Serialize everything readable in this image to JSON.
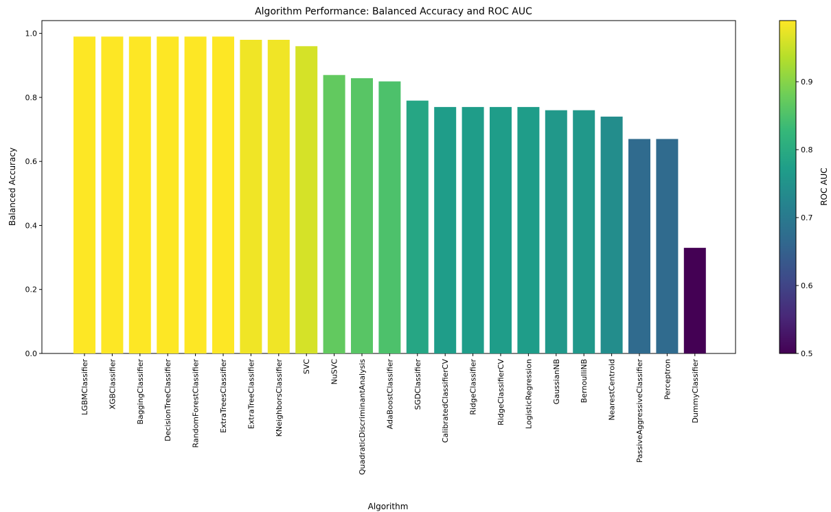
{
  "chart_data": {
    "type": "bar",
    "title": "Algorithm Performance: Balanced Accuracy and ROC AUC",
    "xlabel": "Algorithm",
    "ylabel": "Balanced Accuracy",
    "ylim": [
      0,
      1.04
    ],
    "yticks": [
      0.0,
      0.2,
      0.4,
      0.6,
      0.8,
      1.0
    ],
    "ytick_labels": [
      "0.0",
      "0.2",
      "0.4",
      "0.6",
      "0.8",
      "1.0"
    ],
    "categories": [
      "LGBMClassifier",
      "XGBClassifier",
      "BaggingClassifier",
      "DecisionTreeClassifier",
      "RandomForestClassifier",
      "ExtraTreesClassifier",
      "ExtraTreeClassifier",
      "KNeighborsClassifier",
      "SVC",
      "NuSVC",
      "QuadraticDiscriminantAnalysis",
      "AdaBoostClassifier",
      "SGDClassifier",
      "CalibratedClassifierCV",
      "RidgeClassifier",
      "RidgeClassifierCV",
      "LogisticRegression",
      "GaussianNB",
      "BernoulliNB",
      "NearestCentroid",
      "PassiveAggressiveClassifier",
      "Perceptron",
      "DummyClassifier"
    ],
    "values": [
      0.99,
      0.99,
      0.99,
      0.99,
      0.99,
      0.99,
      0.98,
      0.98,
      0.96,
      0.87,
      0.86,
      0.85,
      0.79,
      0.77,
      0.77,
      0.77,
      0.77,
      0.76,
      0.76,
      0.74,
      0.67,
      0.67,
      0.33
    ],
    "color_values": [
      0.99,
      0.99,
      0.99,
      0.99,
      0.99,
      0.99,
      0.98,
      0.98,
      0.96,
      0.87,
      0.86,
      0.85,
      0.79,
      0.77,
      0.77,
      0.77,
      0.77,
      0.76,
      0.76,
      0.74,
      0.67,
      0.67,
      0.5
    ],
    "colorbar": {
      "label": "ROC AUC",
      "range": [
        0.5,
        0.99
      ],
      "ticks": [
        0.5,
        0.6,
        0.7,
        0.8,
        0.9
      ],
      "tick_labels": [
        "0.5",
        "0.6",
        "0.7",
        "0.8",
        "0.9"
      ],
      "colormap": "viridis"
    },
    "grid": false,
    "legend": "none"
  }
}
